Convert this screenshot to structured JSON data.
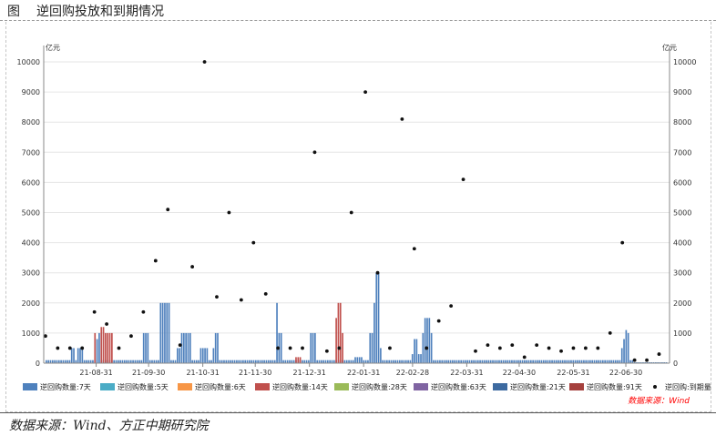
{
  "title": {
    "figure_label": "图",
    "text": "逆回购投放和到期情况"
  },
  "source_text": "数据来源：Wind、方正中期研究院",
  "watermark_text": "数据来源：Wind",
  "colors": {
    "bar_7d": "#4f81bd",
    "bar_14d": "#c0504d",
    "dot": "#111111",
    "legend": [
      "#4f81bd",
      "#4bacc6",
      "#f79646",
      "#c0504d",
      "#9bbb59",
      "#8064a2",
      "#3d6aa0",
      "#a5403d"
    ],
    "watermark": "#ff0000"
  },
  "chart_data": {
    "type": "bar",
    "ylabel_left": "亿元",
    "ylabel_right": "亿元",
    "ylim": [
      0,
      10000
    ],
    "yticks": [
      0,
      1000,
      2000,
      3000,
      4000,
      5000,
      6000,
      7000,
      8000,
      9000,
      10000
    ],
    "xticks": [
      "21-08-31",
      "21-09-30",
      "21-10-31",
      "21-11-30",
      "21-12-31",
      "22-01-31",
      "22-02-28",
      "22-03-31",
      "22-04-30",
      "22-05-31",
      "22-06-30"
    ],
    "legend": [
      {
        "name": "逆回购数量:7天"
      },
      {
        "name": "逆回购数量:5天"
      },
      {
        "name": "逆回购数量:6天"
      },
      {
        "name": "逆回购数量:14天"
      },
      {
        "name": "逆回购数量:28天"
      },
      {
        "name": "逆回购数量:63天"
      },
      {
        "name": "逆回购数量:21天"
      },
      {
        "name": "逆回购数量:91天"
      },
      {
        "name": "逆回购:到期量"
      }
    ],
    "series_7d": [
      100,
      100,
      100,
      100,
      100,
      100,
      100,
      100,
      100,
      100,
      100,
      100,
      500,
      500,
      100,
      500,
      500,
      500,
      100,
      100,
      100,
      100,
      100,
      100,
      800,
      1000,
      100,
      100,
      100,
      100,
      100,
      100,
      100,
      100,
      100,
      100,
      100,
      100,
      100,
      100,
      100,
      100,
      100,
      100,
      100,
      100,
      1000,
      1000,
      1000,
      100,
      100,
      100,
      100,
      100,
      2000,
      2000,
      2000,
      2000,
      2000,
      100,
      100,
      100,
      500,
      500,
      1000,
      1000,
      1000,
      1000,
      1000,
      100,
      100,
      100,
      100,
      500,
      500,
      500,
      500,
      100,
      100,
      500,
      1000,
      1000,
      100,
      100,
      100,
      100,
      100,
      100,
      100,
      100,
      100,
      100,
      100,
      100,
      100,
      100,
      100,
      100,
      100,
      100,
      100,
      100,
      100,
      100,
      100,
      100,
      100,
      100,
      100,
      2000,
      1000,
      1000,
      100,
      100,
      100,
      100,
      100,
      100,
      100,
      100,
      100,
      100,
      100,
      100,
      100,
      1000,
      1000,
      1000,
      100,
      100,
      100,
      100,
      100,
      100,
      100,
      100,
      100,
      100,
      100,
      100,
      100,
      100,
      100,
      100,
      100,
      100,
      200,
      200,
      200,
      200,
      100,
      100,
      100,
      1000,
      1000,
      2000,
      3000,
      3000,
      500,
      100,
      100,
      100,
      100,
      100,
      100,
      100,
      100,
      100,
      100,
      100,
      100,
      100,
      100,
      300,
      800,
      800,
      300,
      300,
      1000,
      1500,
      1500,
      1500,
      1000,
      100,
      100,
      100,
      100,
      100,
      100,
      100,
      100,
      100,
      100,
      100,
      100,
      100,
      100,
      100,
      100,
      100,
      100,
      100,
      100,
      100,
      100,
      100,
      100,
      100,
      100,
      100,
      100,
      100,
      100,
      100,
      100,
      100,
      100,
      100,
      100,
      100,
      100,
      100,
      100,
      100,
      100,
      100,
      100,
      100,
      100,
      100,
      100,
      100,
      100,
      100,
      100,
      100,
      100,
      100,
      100,
      100,
      100,
      100,
      100,
      100,
      100,
      100,
      100,
      100,
      100,
      100,
      100,
      100,
      100,
      100,
      100,
      100,
      100,
      100,
      100,
      100,
      100,
      100,
      100,
      100,
      100,
      100,
      100,
      100,
      100,
      100,
      100,
      100,
      500,
      800,
      1100,
      1000,
      100,
      100,
      30,
      30,
      30,
      30,
      30,
      30,
      30,
      30,
      30,
      30,
      30,
      30,
      30,
      30,
      30,
      30
    ],
    "series_14d": [
      {
        "index": 23,
        "value": 1000
      },
      {
        "index": 26,
        "value": 1200
      },
      {
        "index": 27,
        "value": 1200
      },
      {
        "index": 28,
        "value": 1000
      },
      {
        "index": 29,
        "value": 1000
      },
      {
        "index": 30,
        "value": 1000
      },
      {
        "index": 31,
        "value": 1000
      },
      {
        "index": 118,
        "value": 200
      },
      {
        "index": 119,
        "value": 200
      },
      {
        "index": 120,
        "value": 200
      },
      {
        "index": 137,
        "value": 1500
      },
      {
        "index": 138,
        "value": 2000
      },
      {
        "index": 139,
        "value": 2000
      },
      {
        "index": 140,
        "value": 1000
      }
    ],
    "maturity": [
      {
        "x": "21-08-02",
        "y": 900
      },
      {
        "x": "21-08-09",
        "y": 500
      },
      {
        "x": "21-08-16",
        "y": 500
      },
      {
        "x": "21-08-23",
        "y": 500
      },
      {
        "x": "21-08-30",
        "y": 1700
      },
      {
        "x": "21-09-06",
        "y": 1300
      },
      {
        "x": "21-09-13",
        "y": 500
      },
      {
        "x": "21-09-20",
        "y": 900
      },
      {
        "x": "21-09-27",
        "y": 1700
      },
      {
        "x": "21-10-04",
        "y": 3400
      },
      {
        "x": "21-10-11",
        "y": 5100
      },
      {
        "x": "21-10-18",
        "y": 600
      },
      {
        "x": "21-10-25",
        "y": 3200
      },
      {
        "x": "21-11-01",
        "y": 10000
      },
      {
        "x": "21-11-08",
        "y": 2200
      },
      {
        "x": "21-11-15",
        "y": 5000
      },
      {
        "x": "21-11-22",
        "y": 2100
      },
      {
        "x": "21-11-29",
        "y": 4000
      },
      {
        "x": "21-12-06",
        "y": 2300
      },
      {
        "x": "21-12-13",
        "y": 500
      },
      {
        "x": "21-12-20",
        "y": 500
      },
      {
        "x": "21-12-27",
        "y": 500
      },
      {
        "x": "22-01-03",
        "y": 7000
      },
      {
        "x": "22-01-10",
        "y": 400
      },
      {
        "x": "22-01-17",
        "y": 500
      },
      {
        "x": "22-01-24",
        "y": 5000
      },
      {
        "x": "22-02-01",
        "y": 9000
      },
      {
        "x": "22-02-08",
        "y": 3000
      },
      {
        "x": "22-02-15",
        "y": 500
      },
      {
        "x": "22-02-22",
        "y": 8100
      },
      {
        "x": "22-03-01",
        "y": 3800
      },
      {
        "x": "22-03-08",
        "y": 500
      },
      {
        "x": "22-03-15",
        "y": 1400
      },
      {
        "x": "22-03-22",
        "y": 1900
      },
      {
        "x": "22-03-29",
        "y": 6100
      },
      {
        "x": "22-04-05",
        "y": 400
      },
      {
        "x": "22-04-12",
        "y": 600
      },
      {
        "x": "22-04-19",
        "y": 500
      },
      {
        "x": "22-04-26",
        "y": 600
      },
      {
        "x": "22-05-03",
        "y": 200
      },
      {
        "x": "22-05-10",
        "y": 600
      },
      {
        "x": "22-05-17",
        "y": 500
      },
      {
        "x": "22-05-24",
        "y": 400
      },
      {
        "x": "22-05-31",
        "y": 500
      },
      {
        "x": "22-06-07",
        "y": 500
      },
      {
        "x": "22-06-14",
        "y": 500
      },
      {
        "x": "22-06-21",
        "y": 1000
      },
      {
        "x": "22-06-28",
        "y": 4000
      },
      {
        "x": "22-07-05",
        "y": 100
      },
      {
        "x": "22-07-12",
        "y": 100
      },
      {
        "x": "22-07-19",
        "y": 300
      }
    ]
  }
}
